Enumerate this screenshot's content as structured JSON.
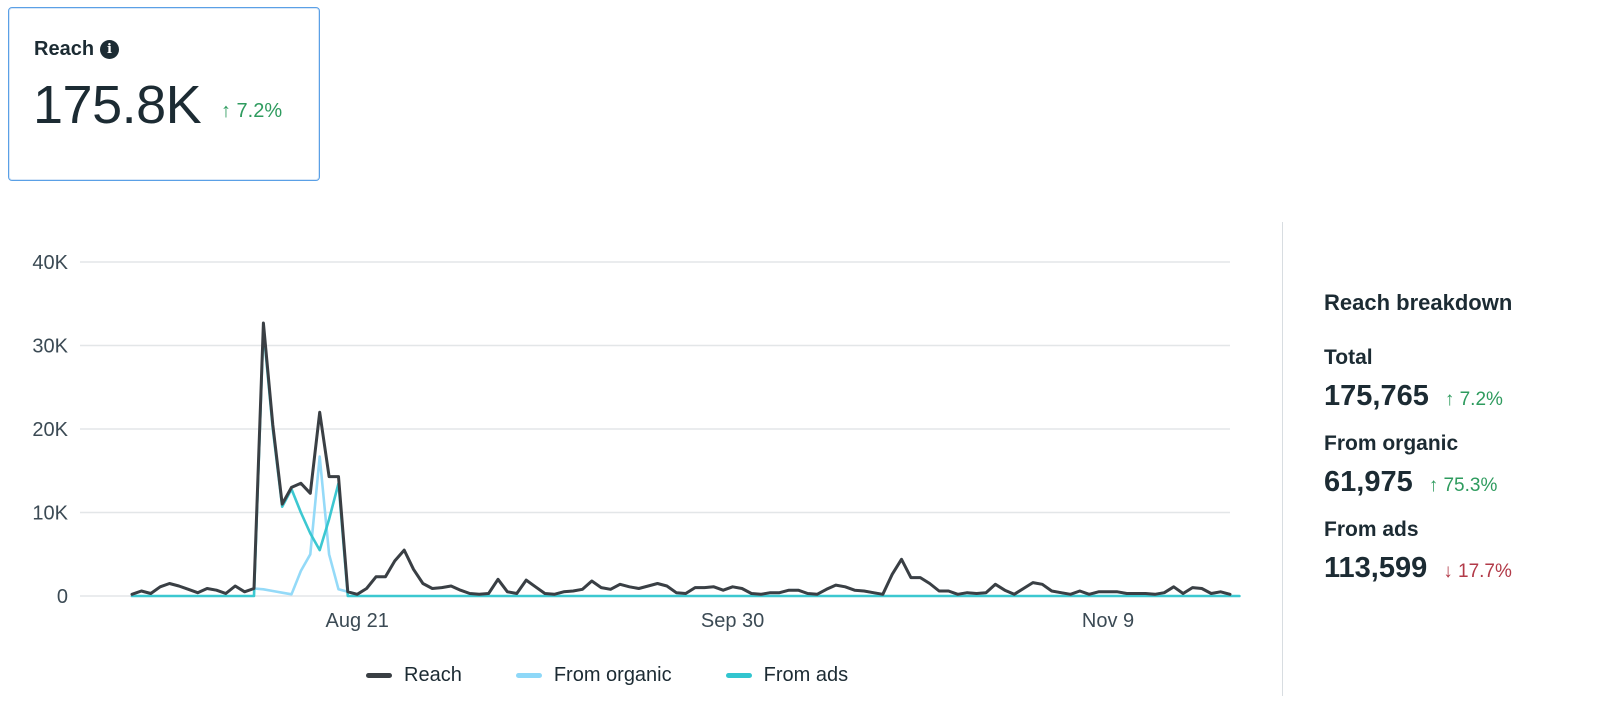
{
  "card": {
    "title": "Reach",
    "value": "175.8K",
    "change": "↑ 7.2%"
  },
  "breakdown": {
    "title": "Reach breakdown",
    "items": [
      {
        "label": "Total",
        "value": "175,765",
        "change": "↑ 7.2%",
        "direction": "up"
      },
      {
        "label": "From organic",
        "value": "61,975",
        "change": "↑ 75.3%",
        "direction": "up"
      },
      {
        "label": "From ads",
        "value": "113,599",
        "change": "↓ 17.7%",
        "direction": "down"
      }
    ]
  },
  "colors": {
    "reach": "#3a3f44",
    "organic": "#8ed8f8",
    "ads": "#32c5cf",
    "up": "#2e9b5e",
    "down": "#b23a48",
    "grid": "#e3e6e8"
  },
  "chart_data": {
    "type": "line",
    "y_ticks": [
      "40K",
      "30K",
      "20K",
      "10K",
      "0"
    ],
    "ylim": [
      0,
      40000
    ],
    "x_tick_labels": [
      {
        "label": "Aug 21",
        "index": 24
      },
      {
        "label": "Sep 30",
        "index": 64
      },
      {
        "label": "Nov 9",
        "index": 104
      }
    ],
    "grid": true,
    "legend_position": "bottom",
    "series": [
      {
        "name": "Reach",
        "color_key": "reach",
        "values": [
          200,
          600,
          300,
          1100,
          1500,
          1200,
          800,
          400,
          900,
          700,
          300,
          1200,
          500,
          900,
          32700,
          20500,
          11000,
          13000,
          13500,
          12300,
          22000,
          14300,
          14300,
          500,
          200,
          900,
          2300,
          2300,
          4200,
          5500,
          3200,
          1500,
          900,
          1000,
          1200,
          700,
          300,
          200,
          300,
          2000,
          500,
          300,
          1900,
          1100,
          300,
          200,
          500,
          600,
          800,
          1800,
          1000,
          800,
          1400,
          1100,
          900,
          1200,
          1500,
          1200,
          400,
          300,
          1000,
          1000,
          1100,
          700,
          1100,
          900,
          300,
          200,
          400,
          400,
          700,
          700,
          300,
          200,
          800,
          1300,
          1100,
          700,
          600,
          400,
          200,
          2600,
          4400,
          2200,
          2200,
          1500,
          600,
          600,
          200,
          400,
          300,
          400,
          1400,
          700,
          200,
          900,
          1600,
          1400,
          600,
          400,
          200,
          600,
          200,
          500,
          500,
          500,
          300,
          300,
          300,
          200,
          400,
          1100,
          300,
          1000,
          900,
          300,
          500,
          200
        ]
      },
      {
        "name": "From organic",
        "color_key": "organic",
        "values": [
          200,
          600,
          300,
          1100,
          1500,
          1200,
          800,
          400,
          900,
          700,
          300,
          1200,
          500,
          900,
          800,
          600,
          400,
          200,
          3000,
          5000,
          16700,
          5000,
          800,
          500,
          200,
          900,
          2300,
          2300,
          4200,
          5500,
          3200,
          1500,
          900,
          1000,
          1200,
          700,
          300,
          200,
          300,
          2000,
          500,
          300,
          1900,
          1100,
          300,
          200,
          500,
          600,
          800,
          1800,
          1000,
          800,
          1400,
          1100,
          900,
          1200,
          1500,
          1200,
          400,
          300,
          1000,
          1000,
          1100,
          700,
          1100,
          900,
          300,
          200,
          400,
          400,
          700,
          700,
          300,
          200,
          800,
          1300,
          1100,
          700,
          600,
          400,
          200,
          2600,
          4400,
          2200,
          2200,
          1500,
          600,
          600,
          200,
          400,
          300,
          400,
          1400,
          700,
          200,
          900,
          1600,
          1400,
          600,
          400,
          200,
          600,
          200,
          500,
          500,
          500,
          300,
          300,
          300,
          200,
          400,
          1100,
          300,
          1000,
          900,
          300,
          500,
          200
        ]
      },
      {
        "name": "From ads",
        "color_key": "ads",
        "values": [
          0,
          0,
          0,
          0,
          0,
          0,
          0,
          0,
          0,
          0,
          0,
          0,
          0,
          0,
          32000,
          20000,
          10700,
          12800,
          10000,
          7500,
          5500,
          9200,
          13500,
          0,
          0,
          0,
          0,
          0,
          0,
          0,
          0,
          0,
          0,
          0,
          0,
          0,
          0,
          0,
          0,
          0,
          0,
          0,
          0,
          0,
          0,
          0,
          0,
          0,
          0,
          0,
          0,
          0,
          0,
          0,
          0,
          0,
          0,
          0,
          0,
          0,
          0,
          0,
          0,
          0,
          0,
          0,
          0,
          0,
          0,
          0,
          0,
          0,
          0,
          0,
          0,
          0,
          0,
          0,
          0,
          0,
          0,
          0,
          0,
          0,
          0,
          0,
          0,
          0,
          0,
          0,
          0,
          0,
          0,
          0,
          0,
          0,
          0,
          0,
          0,
          0,
          0,
          0,
          0,
          0,
          0,
          0,
          0,
          0,
          0,
          0,
          0,
          0,
          0,
          0,
          0,
          0,
          0,
          0,
          0
        ]
      }
    ]
  }
}
